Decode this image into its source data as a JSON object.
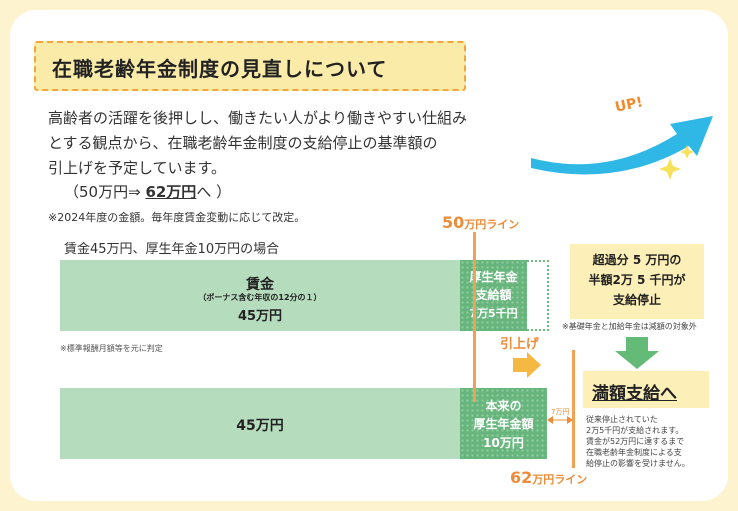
{
  "title": "在職老齢年金制度の見直しについて",
  "intro": {
    "line1": "高齢者の活躍を後押しし、働きたい人がより働きやすい仕組み",
    "line2": "とする観点から、在職老齢年金制度の支給停止の基準額の",
    "line3": "引上げを予定しています。"
  },
  "amount": {
    "prefix": "（50万円⇒ ",
    "strong": "62万円",
    "suffix": "へ ）"
  },
  "note_year": "※2024年度の金額。毎年度賃金変動に応じて改定。",
  "case_label": "賃金45万円、厚生年金10万円の場合",
  "top_bar": {
    "wage_title": "賃金",
    "wage_sub": "（ボーナス含む年収の12分の１）",
    "wage_amount": "45万円",
    "pension_line1": "厚生年金",
    "pension_line2": "支給額",
    "pension_line3": "7万5千円"
  },
  "note_standard": "※標準報酬月額等を元に判定",
  "bottom_bar": {
    "wage_amount": "45万円",
    "pension_line1": "本来の",
    "pension_line2": "厚生年金額",
    "pension_line3": "10万円"
  },
  "line_50": {
    "num": "50",
    "unit": "万円ライン"
  },
  "line_62": {
    "num": "62",
    "unit": "万円ライン"
  },
  "raise_label": "引上げ",
  "dim_label": "7万円",
  "excess": {
    "line1": "超過分 5 万円の",
    "line2": "半額2万 5 千円が",
    "line3": "支給停止"
  },
  "note_basic": "※基礎年金と加給年金は減額の対象外",
  "full_payment": "満額支給へ",
  "full_note": {
    "l1": "従来停止されていた",
    "l2": "2万5千円が支給されます。",
    "l3": "賃金が52万円に達するまで",
    "l4": "在職老齢年金制度による支",
    "l5": "給停止の影響を受けません。"
  },
  "up_text": "UP!",
  "colors": {
    "title_bg": "#fbeba8",
    "title_border": "#f3a63d",
    "bar_light": "#b5dcbd",
    "bar_dark": "#67b57d",
    "accent_orange": "#ec8b38",
    "up_arrow": "#2fb8e6",
    "down_arrow": "#63bb77",
    "page_bg": "#fdf3cf"
  }
}
